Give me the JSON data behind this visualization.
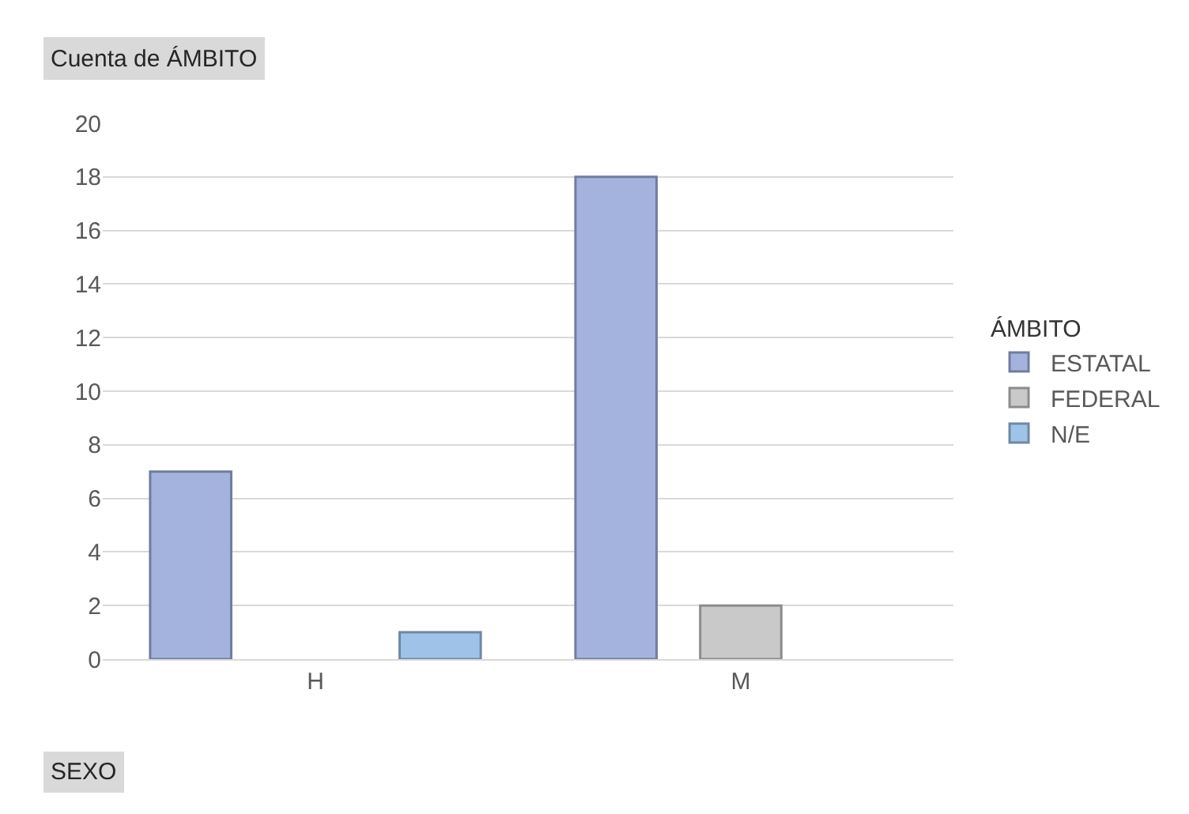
{
  "chart_data": {
    "type": "bar",
    "title": "Cuenta de ÁMBITO",
    "xlabel": "SEXO",
    "legend_title": "ÁMBITO",
    "categories": [
      "H",
      "M"
    ],
    "series": [
      {
        "name": "ESTATAL",
        "color": "#a3b3de",
        "values": [
          7,
          18
        ]
      },
      {
        "name": "FEDERAL",
        "color": "#c9c9c9",
        "values": [
          null,
          2
        ]
      },
      {
        "name": "N/E",
        "color": "#9fc3e8",
        "values": [
          1,
          null
        ]
      }
    ],
    "ylim": [
      0,
      20
    ],
    "yticks": [
      0,
      2,
      4,
      6,
      8,
      10,
      12,
      14,
      16,
      18,
      20
    ],
    "grid": "y",
    "legend": "right"
  }
}
